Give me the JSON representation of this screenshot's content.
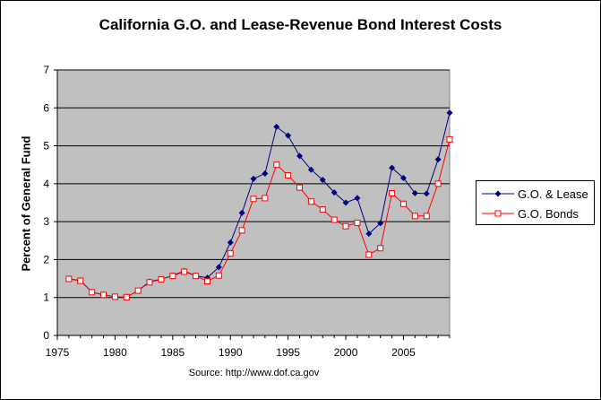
{
  "chart_data": {
    "type": "line",
    "title": "California G.O. and Lease-Revenue Bond Interest Costs",
    "ylabel": "Percent of General Fund",
    "xlabel": "",
    "source": "Source:  http://www.dof.ca.gov",
    "xlim": [
      1975,
      2009
    ],
    "ylim": [
      0,
      7
    ],
    "x_ticks": [
      1975,
      1980,
      1985,
      1990,
      1995,
      2000,
      2005
    ],
    "y_ticks": [
      0,
      1,
      2,
      3,
      4,
      5,
      6,
      7
    ],
    "grid": "horizontal",
    "legend_position": "right",
    "x": [
      1976,
      1977,
      1978,
      1979,
      1980,
      1981,
      1982,
      1983,
      1984,
      1985,
      1986,
      1987,
      1988,
      1989,
      1990,
      1991,
      1992,
      1993,
      1994,
      1995,
      1996,
      1997,
      1998,
      1999,
      2000,
      2001,
      2002,
      2003,
      2004,
      2005,
      2006,
      2007,
      2008,
      2009
    ],
    "series": [
      {
        "name": "G.O. & Lease",
        "color": "#000080",
        "marker": "diamond",
        "values": [
          1.49,
          1.45,
          1.14,
          1.07,
          1.02,
          1.01,
          1.18,
          1.42,
          1.48,
          1.58,
          1.7,
          1.57,
          1.52,
          1.8,
          2.45,
          3.23,
          4.13,
          4.27,
          5.5,
          5.27,
          4.73,
          4.37,
          4.1,
          3.77,
          3.5,
          3.62,
          2.68,
          2.96,
          4.42,
          4.15,
          3.75,
          3.74,
          4.64,
          5.87
        ]
      },
      {
        "name": "G.O. Bonds",
        "color": "#ff0000",
        "marker": "square",
        "values": [
          1.49,
          1.44,
          1.14,
          1.07,
          1.02,
          1.01,
          1.18,
          1.4,
          1.48,
          1.57,
          1.68,
          1.57,
          1.43,
          1.58,
          2.16,
          2.77,
          3.6,
          3.62,
          4.5,
          4.22,
          3.9,
          3.53,
          3.32,
          3.05,
          2.88,
          2.97,
          2.13,
          2.3,
          3.75,
          3.47,
          3.15,
          3.15,
          4.0,
          5.17
        ]
      }
    ]
  },
  "colors": {
    "plot_bg": "#c0c0c0",
    "grid": "#000000"
  }
}
